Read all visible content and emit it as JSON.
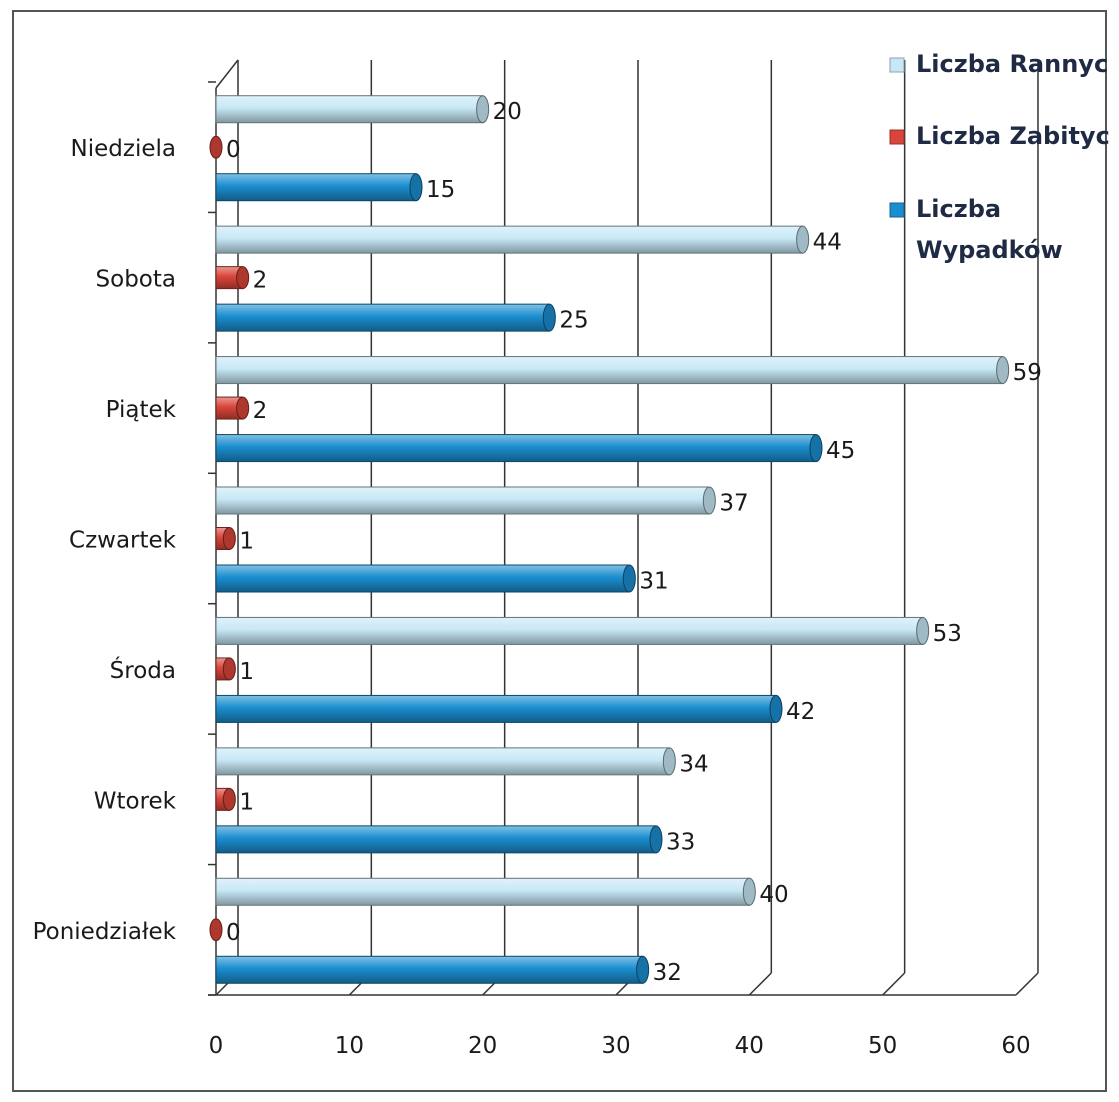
{
  "chart_data": {
    "type": "bar",
    "orientation": "horizontal",
    "categories": [
      "Poniedziałek",
      "Wtorek",
      "Środa",
      "Czwartek",
      "Piątek",
      "Sobota",
      "Niedziela"
    ],
    "series": [
      {
        "name": "Liczba Rannych",
        "color": "#c7e8f6",
        "values": [
          40,
          34,
          53,
          37,
          59,
          44,
          20
        ]
      },
      {
        "name": "Liczba Zabitych",
        "color": "#d9453a",
        "values": [
          0,
          1,
          1,
          1,
          2,
          2,
          0
        ]
      },
      {
        "name": "Liczba Wypadków",
        "color": "#1b8ed0",
        "values": [
          32,
          33,
          42,
          31,
          45,
          25,
          15
        ]
      }
    ],
    "xlim": [
      0,
      60
    ],
    "xticks": [
      0,
      10,
      20,
      30,
      40,
      50,
      60
    ],
    "grid": "vertical",
    "legend_position": "top-right",
    "legend_lines": [
      [
        "Liczba Rannych"
      ],
      [
        "Liczba Zabitych"
      ],
      [
        "Liczba",
        "Wypadków"
      ]
    ],
    "style": "3d-cylinder"
  }
}
